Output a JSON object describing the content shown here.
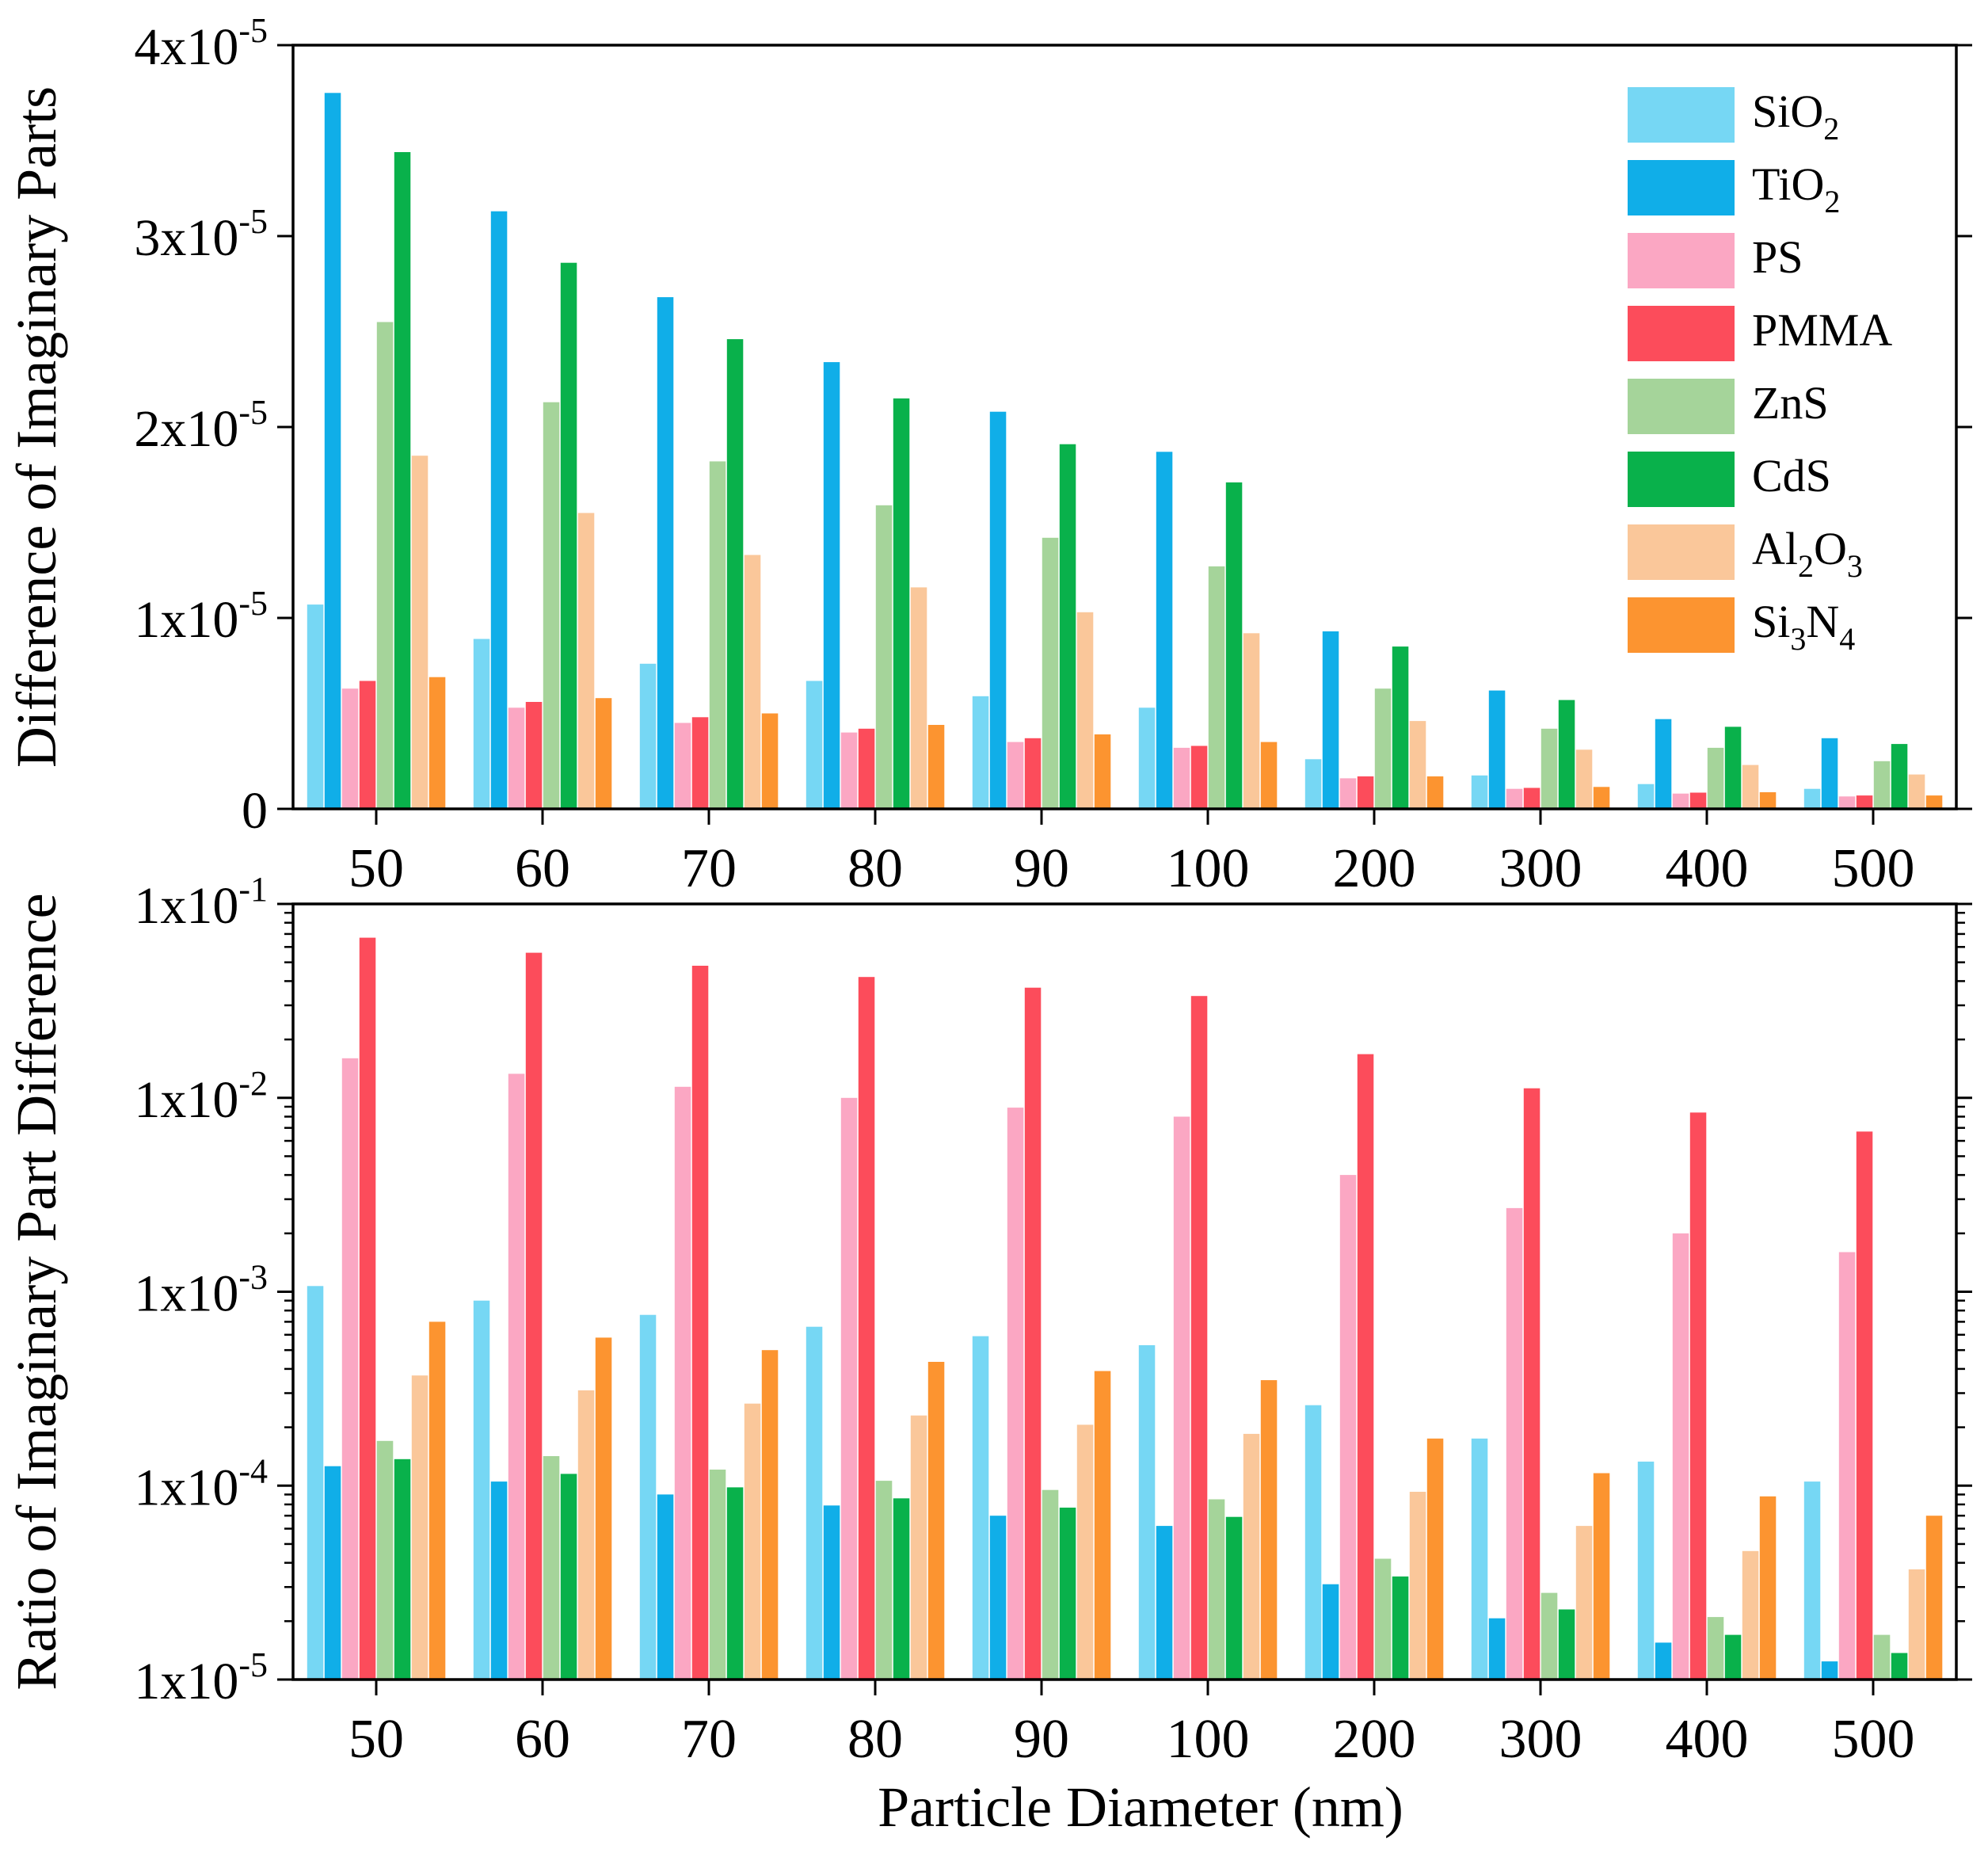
{
  "chart_data": [
    {
      "type": "bar",
      "scale": "linear",
      "title": "",
      "xlabel": "",
      "ylabel": "Difference of Imaginary Parts",
      "ylim": [
        0,
        4e-05
      ],
      "categories": [
        "50",
        "60",
        "70",
        "80",
        "90",
        "100",
        "200",
        "300",
        "400",
        "500"
      ],
      "yticks": [
        {
          "value": 0,
          "base": "0",
          "exp": ""
        },
        {
          "value": 1e-05,
          "base": "1x10",
          "exp": "-5"
        },
        {
          "value": 2e-05,
          "base": "2x10",
          "exp": "-5"
        },
        {
          "value": 3e-05,
          "base": "3x10",
          "exp": "-5"
        },
        {
          "value": 4e-05,
          "base": "4x10",
          "exp": "-5"
        }
      ],
      "legend": {
        "position": "top-right",
        "entries": [
          {
            "parts": [
              {
                "t": "SiO"
              },
              {
                "t": "2",
                "sub": true
              }
            ]
          },
          {
            "parts": [
              {
                "t": "TiO"
              },
              {
                "t": "2",
                "sub": true
              }
            ]
          },
          {
            "parts": [
              {
                "t": "PS"
              }
            ]
          },
          {
            "parts": [
              {
                "t": "PMMA"
              }
            ]
          },
          {
            "parts": [
              {
                "t": "ZnS"
              }
            ]
          },
          {
            "parts": [
              {
                "t": "CdS"
              }
            ]
          },
          {
            "parts": [
              {
                "t": "Al"
              },
              {
                "t": "2",
                "sub": true
              },
              {
                "t": "O"
              },
              {
                "t": "3",
                "sub": true
              }
            ]
          },
          {
            "parts": [
              {
                "t": "Si"
              },
              {
                "t": "3",
                "sub": true
              },
              {
                "t": "N"
              },
              {
                "t": "4",
                "sub": true
              }
            ]
          }
        ]
      },
      "series": [
        {
          "name": "SiO2",
          "color": "#76d7f4",
          "values": [
            1.07e-05,
            8.9e-06,
            7.6e-06,
            6.7e-06,
            5.9e-06,
            5.3e-06,
            2.6e-06,
            1.75e-06,
            1.3e-06,
            1.05e-06
          ]
        },
        {
          "name": "TiO2",
          "color": "#10aee8",
          "values": [
            3.75e-05,
            3.13e-05,
            2.68e-05,
            2.34e-05,
            2.08e-05,
            1.87e-05,
            9.3e-06,
            6.2e-06,
            4.7e-06,
            3.7e-06
          ]
        },
        {
          "name": "PS",
          "color": "#fba7c3",
          "values": [
            6.3e-06,
            5.3e-06,
            4.5e-06,
            4e-06,
            3.5e-06,
            3.2e-06,
            1.6e-06,
            1.05e-06,
            8e-07,
            6.5e-07
          ]
        },
        {
          "name": "PMMA",
          "color": "#fc4c5b",
          "values": [
            6.7e-06,
            5.6e-06,
            4.8e-06,
            4.2e-06,
            3.7e-06,
            3.3e-06,
            1.7e-06,
            1.1e-06,
            8.5e-07,
            7e-07
          ]
        },
        {
          "name": "ZnS",
          "color": "#a5d49a",
          "values": [
            2.55e-05,
            2.13e-05,
            1.82e-05,
            1.59e-05,
            1.42e-05,
            1.27e-05,
            6.3e-06,
            4.2e-06,
            3.2e-06,
            2.5e-06
          ]
        },
        {
          "name": "CdS",
          "color": "#09b14b",
          "values": [
            3.44e-05,
            2.86e-05,
            2.46e-05,
            2.15e-05,
            1.91e-05,
            1.71e-05,
            8.5e-06,
            5.7e-06,
            4.3e-06,
            3.4e-06
          ]
        },
        {
          "name": "Al2O3",
          "color": "#fac79a",
          "values": [
            1.85e-05,
            1.55e-05,
            1.33e-05,
            1.16e-05,
            1.03e-05,
            9.2e-06,
            4.6e-06,
            3.1e-06,
            2.3e-06,
            1.8e-06
          ]
        },
        {
          "name": "Si3N4",
          "color": "#fc9430",
          "values": [
            6.9e-06,
            5.8e-06,
            5e-06,
            4.4e-06,
            3.9e-06,
            3.5e-06,
            1.7e-06,
            1.15e-06,
            8.7e-07,
            7e-07
          ]
        }
      ]
    },
    {
      "type": "bar",
      "scale": "log",
      "title": "",
      "xlabel": "Particle Diameter (nm)",
      "ylabel": "Ratio of Imaginary Part Difference",
      "ylim": [
        1e-05,
        0.1
      ],
      "categories": [
        "50",
        "60",
        "70",
        "80",
        "90",
        "100",
        "200",
        "300",
        "400",
        "500"
      ],
      "yticks": [
        {
          "value": 1e-05,
          "base": "1x10",
          "exp": "-5"
        },
        {
          "value": 0.0001,
          "base": "1x10",
          "exp": "-4"
        },
        {
          "value": 0.001,
          "base": "1x10",
          "exp": "-3"
        },
        {
          "value": 0.01,
          "base": "1x10",
          "exp": "-2"
        },
        {
          "value": 0.1,
          "base": "1x10",
          "exp": "-1"
        }
      ],
      "series": [
        {
          "name": "SiO2",
          "color": "#76d7f4",
          "values": [
            0.00107,
            0.0009,
            0.00076,
            0.00066,
            0.00059,
            0.00053,
            0.00026,
            0.000175,
            0.000133,
            0.000105
          ]
        },
        {
          "name": "TiO2",
          "color": "#10aee8",
          "values": [
            0.000126,
            0.000105,
            9e-05,
            7.9e-05,
            7e-05,
            6.2e-05,
            3.1e-05,
            2.07e-05,
            1.55e-05,
            1.24e-05
          ]
        },
        {
          "name": "PS",
          "color": "#fba7c3",
          "values": [
            0.016,
            0.0133,
            0.0114,
            0.01,
            0.0089,
            0.008,
            0.004,
            0.0027,
            0.002,
            0.0016
          ]
        },
        {
          "name": "PMMA",
          "color": "#fc4c5b",
          "values": [
            0.067,
            0.056,
            0.048,
            0.042,
            0.037,
            0.0335,
            0.0168,
            0.0112,
            0.0084,
            0.0067
          ]
        },
        {
          "name": "ZnS",
          "color": "#a5d49a",
          "values": [
            0.00017,
            0.000142,
            0.000121,
            0.000106,
            9.5e-05,
            8.5e-05,
            4.2e-05,
            2.8e-05,
            2.1e-05,
            1.7e-05
          ]
        },
        {
          "name": "CdS",
          "color": "#09b14b",
          "values": [
            0.000137,
            0.000115,
            9.8e-05,
            8.6e-05,
            7.7e-05,
            6.9e-05,
            3.4e-05,
            2.3e-05,
            1.7e-05,
            1.37e-05
          ]
        },
        {
          "name": "Al2O3",
          "color": "#fac79a",
          "values": [
            0.00037,
            0.00031,
            0.000265,
            0.00023,
            0.000206,
            0.000185,
            9.3e-05,
            6.2e-05,
            4.6e-05,
            3.7e-05
          ]
        },
        {
          "name": "Si3N4",
          "color": "#fc9430",
          "values": [
            0.0007,
            0.00058,
            0.0005,
            0.000435,
            0.00039,
            0.00035,
            0.000175,
            0.000116,
            8.8e-05,
            7e-05
          ]
        }
      ]
    }
  ]
}
